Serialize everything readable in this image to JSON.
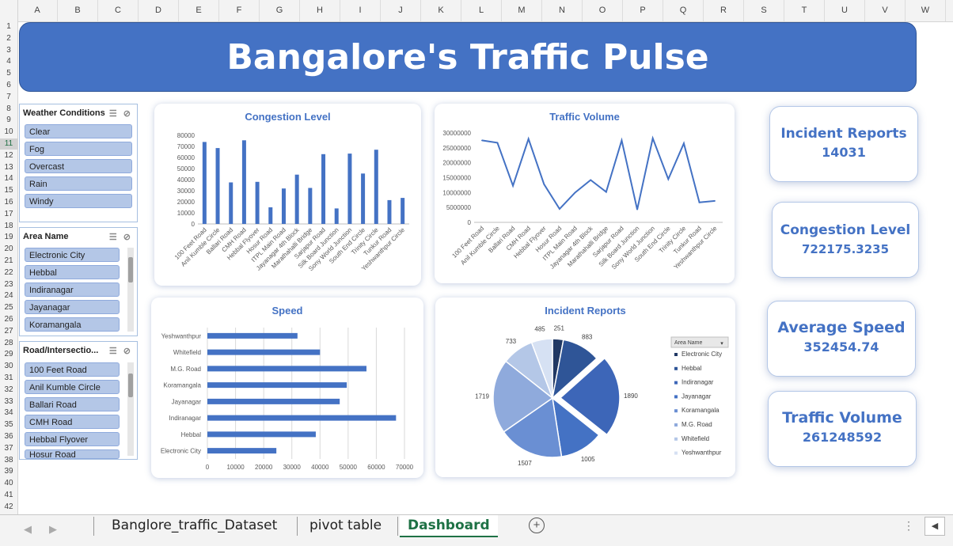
{
  "grid": {
    "columns": [
      "A",
      "B",
      "C",
      "D",
      "E",
      "F",
      "G",
      "H",
      "I",
      "J",
      "K",
      "L",
      "M",
      "N",
      "O",
      "P",
      "Q",
      "R",
      "S",
      "T",
      "U",
      "V",
      "W"
    ],
    "rows": [
      "1",
      "2",
      "3",
      "4",
      "5",
      "6",
      "7",
      "8",
      "9",
      "10",
      "11",
      "12",
      "13",
      "14",
      "15",
      "16",
      "17",
      "18",
      "19",
      "20",
      "21",
      "22",
      "23",
      "24",
      "25",
      "26",
      "27",
      "28",
      "29",
      "30",
      "31",
      "32",
      "33",
      "34",
      "35",
      "36",
      "37",
      "38",
      "39",
      "40",
      "41",
      "42"
    ],
    "selected_row": "11"
  },
  "dashboard": {
    "title": "Bangalore's Traffic Pulse"
  },
  "slicers": {
    "weather": {
      "title": "Weather Conditions",
      "items": [
        "Clear",
        "Fog",
        "Overcast",
        "Rain",
        "Windy"
      ]
    },
    "area": {
      "title": "Area Name",
      "items": [
        "Electronic City",
        "Hebbal",
        "Indiranagar",
        "Jayanagar",
        "Koramangala"
      ]
    },
    "road": {
      "title": "Road/Intersectio...",
      "items": [
        "100 Feet Road",
        "Anil Kumble Circle",
        "Ballari Road",
        "CMH Road",
        "Hebbal Flyover",
        "Hosur Road"
      ]
    }
  },
  "kpis": {
    "incident": {
      "label": "Incident Reports",
      "value": "14031"
    },
    "congestion": {
      "label": "Congestion Level",
      "value": "722175.3235"
    },
    "speed": {
      "label": "Average Speed",
      "value": "352454.74"
    },
    "volume": {
      "label": "Traffic Volume",
      "value": "261248592"
    }
  },
  "sheet_tabs": {
    "tabs": [
      "Banglore_traffic_Dataset",
      "pivot table",
      "Dashboard"
    ],
    "active": "Dashboard"
  },
  "colors": {
    "accent": "#4472c4",
    "bar": "#4472c4",
    "banner": "#4472c4"
  },
  "chart_data": [
    {
      "type": "bar",
      "title": "Congestion Level",
      "categories": [
        "100 Feet Road",
        "Anil Kumble Circle",
        "Ballari Road",
        "CMH Road",
        "Hebbal Flyover",
        "Hosur Road",
        "ITPL Main Road",
        "Jayanagar 4th Block",
        "Marathahalli Bridge",
        "Sarjapur Road",
        "Silk Board Junction",
        "Sony World Junction",
        "South End Circle",
        "Trinity Circle",
        "Tunkur Road",
        "Yeshwanthpur Circle"
      ],
      "values": [
        74000,
        68500,
        37500,
        75500,
        38000,
        15000,
        32000,
        44500,
        32500,
        63000,
        14000,
        63500,
        45500,
        67000,
        21500,
        23500
      ],
      "ylim": [
        0,
        80000
      ],
      "yticks": [
        "0",
        "10000",
        "20000",
        "30000",
        "40000",
        "50000",
        "60000",
        "70000",
        "80000"
      ]
    },
    {
      "type": "line",
      "title": "Traffic Volume",
      "categories": [
        "100 Feet Road",
        "Anil Kumble Circle",
        "Ballari Road",
        "CMH Road",
        "Hebbal Flyover",
        "Hosur Road",
        "ITPL Main Road",
        "Jayanagar 4th Block",
        "Marathahalli Bridge",
        "Sarjapur Road",
        "Silk Board Junction",
        "Sony World Junction",
        "South End Circle",
        "Trinity Circle",
        "Tunkur Road",
        "Yeshwanthpur Circle"
      ],
      "values": [
        27500000,
        26700000,
        12300000,
        28000000,
        12800000,
        4500000,
        10000000,
        14200000,
        10200000,
        27500000,
        4300000,
        28200000,
        14500000,
        26500000,
        6700000,
        7200000
      ],
      "ylim": [
        0,
        30000000
      ],
      "yticks": [
        "0",
        "5000000",
        "10000000",
        "15000000",
        "20000000",
        "25000000",
        "30000000"
      ]
    },
    {
      "type": "bar",
      "orientation": "horizontal",
      "title": "Speed",
      "categories": [
        "Yeshwanthpur",
        "Whitefield",
        "M.G. Road",
        "Koramangala",
        "Jayanagar",
        "Indiranagar",
        "Hebbal",
        "Electronic City"
      ],
      "values": [
        32000,
        40000,
        56500,
        49500,
        47000,
        67000,
        38500,
        24500
      ],
      "xlim": [
        0,
        70000
      ],
      "xticks": [
        "0",
        "10000",
        "20000",
        "30000",
        "40000",
        "50000",
        "60000",
        "70000"
      ]
    },
    {
      "type": "pie",
      "title": "Incident Reports",
      "legend_title": "Area Name",
      "legend": "right",
      "labels": [
        "Electronic City",
        "Hebbal",
        "Indiranagar",
        "Jayanagar",
        "Koramangala",
        "M.G. Road",
        "Whitefield",
        "Yeshwanthpur"
      ],
      "values": [
        251,
        883,
        1890,
        1005,
        1507,
        1719,
        733,
        485
      ],
      "colors": [
        "#203864",
        "#2f5597",
        "#3d66b8",
        "#4472c4",
        "#6a8fd3",
        "#8faadc",
        "#b4c7e7",
        "#d6e1f3"
      ],
      "exploded": "Indiranagar"
    }
  ]
}
